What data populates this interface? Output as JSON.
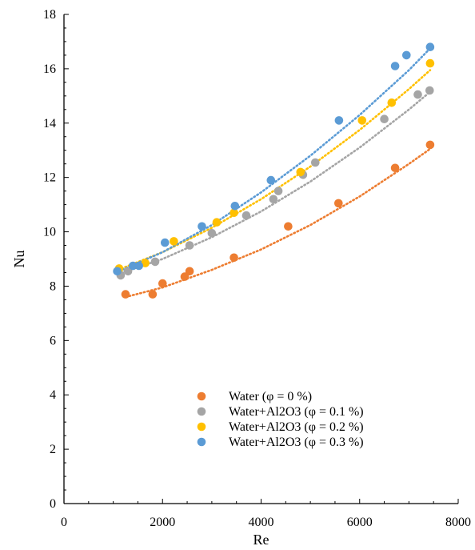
{
  "chart_data": {
    "type": "scatter",
    "title": "",
    "xlabel": "Re",
    "ylabel": "Nu",
    "xlim": [
      0,
      8000
    ],
    "ylim": [
      0,
      18
    ],
    "x_ticks": [
      "0",
      "2000",
      "4000",
      "6000",
      "8000"
    ],
    "y_ticks": [
      "0",
      "2",
      "4",
      "6",
      "8",
      "10",
      "12",
      "14",
      "16",
      "18"
    ],
    "grid": false,
    "legend_position": "bottom-center",
    "trendline_style": "dotted",
    "series": [
      {
        "name": "Water (φ = 0 %)",
        "color": "#ED7D31",
        "x": [
          1250,
          1800,
          2000,
          2450,
          2550,
          3450,
          4550,
          5570,
          6720,
          7430
        ],
        "y": [
          7.7,
          7.7,
          8.1,
          8.35,
          8.55,
          9.05,
          10.2,
          11.05,
          12.35,
          13.2
        ],
        "trend_x": [
          1250,
          2000,
          3000,
          4000,
          5000,
          6000,
          7000,
          7430
        ],
        "trend_y": [
          7.6,
          7.95,
          8.6,
          9.35,
          10.25,
          11.3,
          12.5,
          13.05
        ]
      },
      {
        "name": "Water+Al2O3 (φ = 0.1 %)",
        "color": "#A5A5A5",
        "x": [
          1150,
          1300,
          1850,
          2550,
          3000,
          3700,
          4250,
          4350,
          4850,
          5100,
          6500,
          7180,
          7420
        ],
        "y": [
          8.4,
          8.55,
          8.9,
          9.5,
          9.95,
          10.6,
          11.2,
          11.5,
          12.1,
          12.55,
          14.15,
          15.05,
          15.2
        ],
        "trend_x": [
          1100,
          2000,
          3000,
          4000,
          5000,
          6000,
          7000,
          7430
        ],
        "trend_y": [
          8.45,
          9.0,
          9.8,
          10.75,
          11.85,
          13.1,
          14.5,
          15.15
        ]
      },
      {
        "name": "Water+Al2O3 (φ = 0.2 %)",
        "color": "#FFC000",
        "x": [
          1120,
          1650,
          2230,
          3100,
          3450,
          4800,
          6050,
          6650,
          7430
        ],
        "y": [
          8.65,
          8.85,
          9.65,
          10.35,
          10.7,
          12.2,
          14.1,
          14.75,
          16.2
        ],
        "trend_x": [
          1100,
          2000,
          3000,
          4000,
          5000,
          6000,
          7000,
          7430
        ],
        "trend_y": [
          8.6,
          9.25,
          10.15,
          11.2,
          12.4,
          13.75,
          15.25,
          15.95
        ]
      },
      {
        "name": "Water+Al2O3 (φ = 0.3 %)",
        "color": "#5B9BD5",
        "x": [
          1080,
          1400,
          1520,
          2050,
          2800,
          3470,
          4200,
          5580,
          6720,
          6950,
          7430
        ],
        "y": [
          8.55,
          8.75,
          8.75,
          9.6,
          10.2,
          10.95,
          11.9,
          14.1,
          16.1,
          16.5,
          16.8
        ],
        "trend_x": [
          1050,
          2000,
          3000,
          4000,
          5000,
          6000,
          7000,
          7430
        ],
        "trend_y": [
          8.5,
          9.25,
          10.25,
          11.45,
          12.8,
          14.3,
          15.95,
          16.75
        ]
      }
    ]
  }
}
